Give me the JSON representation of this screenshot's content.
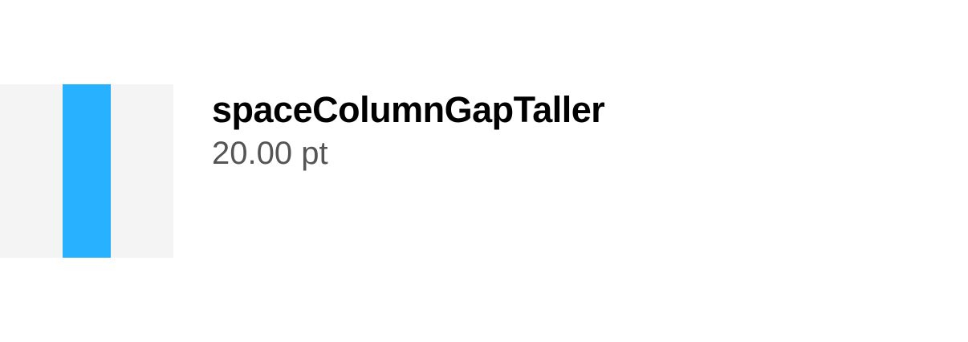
{
  "token": {
    "name": "spaceColumnGapTaller",
    "value": "20.00 pt"
  },
  "colors": {
    "swatch_background": "#f4f4f4",
    "gap_fill": "#27b1ff"
  }
}
